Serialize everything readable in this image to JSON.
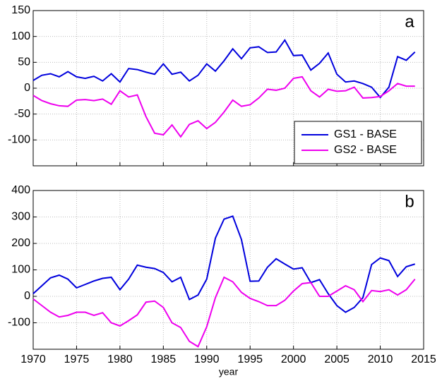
{
  "chart_data": [
    {
      "type": "line",
      "annotation": "a",
      "x": [
        1970,
        1971,
        1972,
        1973,
        1974,
        1975,
        1976,
        1977,
        1978,
        1979,
        1980,
        1981,
        1982,
        1983,
        1984,
        1985,
        1986,
        1987,
        1988,
        1989,
        1990,
        1991,
        1992,
        1993,
        1994,
        1995,
        1996,
        1997,
        1998,
        1999,
        2000,
        2001,
        2002,
        2003,
        2004,
        2005,
        2006,
        2007,
        2008,
        2009,
        2010,
        2011,
        2012,
        2013,
        2014
      ],
      "series": [
        {
          "name": "GS1 - BASE",
          "color": "#0000dd",
          "values": [
            15,
            25,
            28,
            22,
            32,
            22,
            19,
            23,
            14,
            28,
            12,
            38,
            36,
            31,
            27,
            47,
            27,
            31,
            14,
            25,
            47,
            33,
            53,
            76,
            57,
            78,
            80,
            69,
            70,
            93,
            63,
            64,
            35,
            48,
            68,
            27,
            12,
            14,
            9,
            2,
            -18,
            2,
            61,
            54,
            70
          ]
        },
        {
          "name": "GS2 - BASE",
          "color": "#ee00ee",
          "values": [
            -14,
            -24,
            -30,
            -34,
            -35,
            -23,
            -22,
            -24,
            -21,
            -31,
            -5,
            -17,
            -13,
            -55,
            -87,
            -90,
            -71,
            -94,
            -70,
            -63,
            -78,
            -66,
            -46,
            -23,
            -35,
            -32,
            -19,
            -2,
            -4,
            0,
            19,
            22,
            -5,
            -17,
            -2,
            -6,
            -5,
            2,
            -19,
            -18,
            -16,
            -5,
            9,
            4,
            4
          ]
        }
      ],
      "xlim": [
        1970,
        2015
      ],
      "xticks": [
        1970,
        1975,
        1980,
        1985,
        1990,
        1995,
        2000,
        2005,
        2010,
        2015
      ],
      "xtick_labels": false,
      "ylim": [
        -150,
        150
      ],
      "yticks": [
        -100,
        -50,
        0,
        50,
        100,
        150
      ],
      "grid": true,
      "legend": "lower right"
    },
    {
      "type": "line",
      "annotation": "b",
      "xlabel": "year",
      "x": [
        1970,
        1971,
        1972,
        1973,
        1974,
        1975,
        1976,
        1977,
        1978,
        1979,
        1980,
        1981,
        1982,
        1983,
        1984,
        1985,
        1986,
        1987,
        1988,
        1989,
        1990,
        1991,
        1992,
        1993,
        1994,
        1995,
        1996,
        1997,
        1998,
        1999,
        2000,
        2001,
        2002,
        2003,
        2004,
        2005,
        2006,
        2007,
        2008,
        2009,
        2010,
        2011,
        2012,
        2013,
        2014
      ],
      "series": [
        {
          "color": "#0000dd",
          "values": [
            10,
            40,
            70,
            80,
            65,
            32,
            45,
            58,
            68,
            72,
            25,
            65,
            118,
            110,
            105,
            90,
            55,
            72,
            -12,
            5,
            65,
            220,
            292,
            303,
            215,
            57,
            58,
            110,
            142,
            122,
            103,
            108,
            52,
            63,
            10,
            -35,
            -60,
            -42,
            -5,
            120,
            145,
            135,
            75,
            112,
            122
          ]
        },
        {
          "color": "#ee00ee",
          "values": [
            -10,
            -35,
            -60,
            -78,
            -72,
            -60,
            -60,
            -72,
            -62,
            -100,
            -112,
            -92,
            -70,
            -22,
            -18,
            -42,
            -100,
            -118,
            -170,
            -190,
            -115,
            -5,
            72,
            55,
            15,
            -8,
            -20,
            -35,
            -35,
            -15,
            20,
            48,
            52,
            0,
            0,
            20,
            40,
            25,
            -20,
            22,
            18,
            25,
            5,
            25,
            65
          ]
        }
      ],
      "xlim": [
        1970,
        2015
      ],
      "xticks": [
        1970,
        1975,
        1980,
        1985,
        1990,
        1995,
        2000,
        2005,
        2010,
        2015
      ],
      "xtick_labels": true,
      "ylim": [
        -200,
        400
      ],
      "yticks": [
        -100,
        0,
        100,
        200,
        300,
        400
      ],
      "grid": true
    }
  ]
}
